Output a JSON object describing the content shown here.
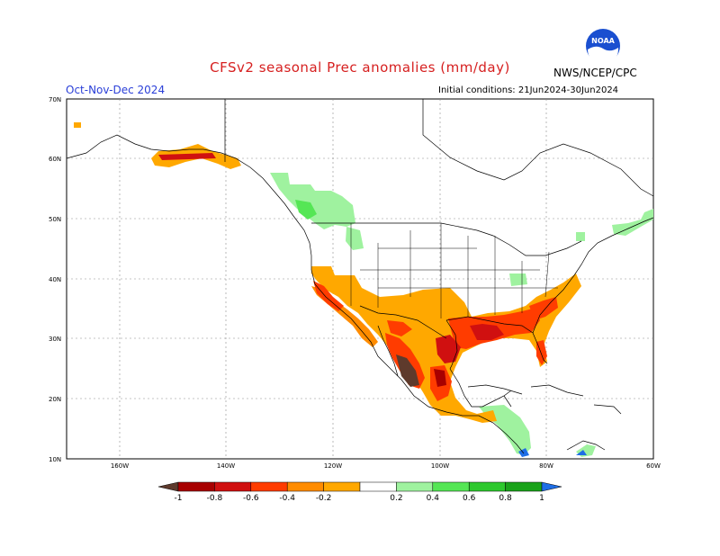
{
  "header": {
    "title": "CFSv2 seasonal Prec anomalies (mm/day)",
    "period": "Oct-Nov-Dec 2024",
    "initial_conditions": "Initial conditions: 21Jun2024-30Jun2024",
    "agency": "NWS/NCEP/CPC",
    "logo_text": "NOAA"
  },
  "map": {
    "lat_labels": [
      "70N",
      "60N",
      "50N",
      "40N",
      "30N",
      "20N",
      "10N"
    ],
    "lon_labels": [
      "160W",
      "140W",
      "120W",
      "100W",
      "80W",
      "60W"
    ],
    "grid": true
  },
  "colorbar": {
    "labels": [
      "-1",
      "-0.8",
      "-0.6",
      "-0.4",
      "-0.2",
      "0.2",
      "0.4",
      "0.6",
      "0.8",
      "1"
    ],
    "colors": [
      "#5e3a2c",
      "#a80000",
      "#d01010",
      "#ff3c00",
      "#ff8c00",
      "#ffa800",
      "#ffffff",
      "#9ff29f",
      "#55e655",
      "#2ec82e",
      "#1aa21a",
      "#1e6ee6"
    ]
  }
}
